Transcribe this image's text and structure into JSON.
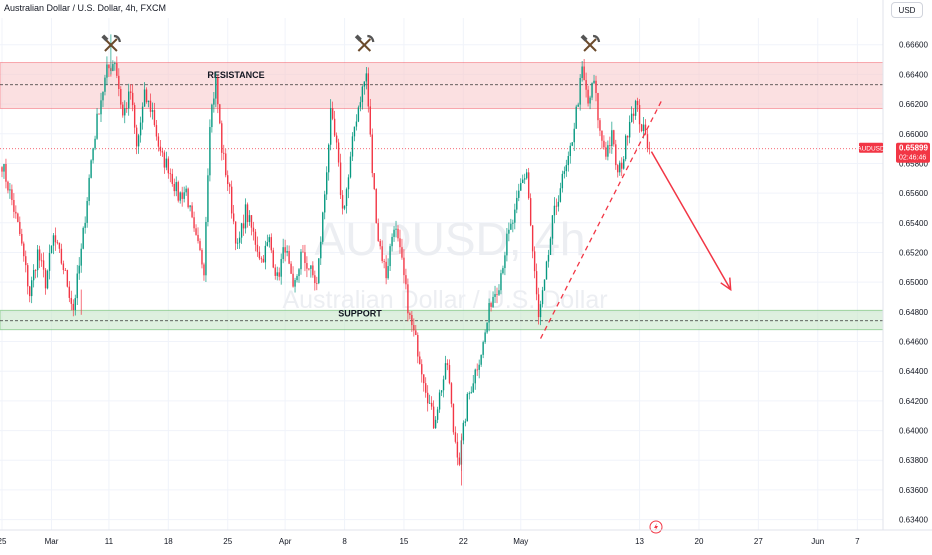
{
  "header": {
    "title": "Australian Dollar / U.S. Dollar, 4h, FXCM",
    "currency_button": "USD"
  },
  "watermark": {
    "main": "AUDUSD, 4h",
    "sub": "Australian Dollar / U.S. Dollar"
  },
  "price_tag": {
    "symbol": "AUDUSD",
    "price": "0.65899",
    "countdown": "02:46:46"
  },
  "colors": {
    "up": "#089981",
    "down": "#f23645",
    "resistance_zone": "#f7c6c9",
    "support_zone": "#c8e6c9",
    "arrow": "#f23645"
  },
  "chart_data": {
    "type": "candlestick",
    "ylim": [
      0.6333,
      0.6678
    ],
    "y_ticks": [
      0.634,
      0.636,
      0.638,
      0.64,
      0.642,
      0.644,
      0.646,
      0.648,
      0.65,
      0.652,
      0.654,
      0.656,
      0.658,
      0.66,
      0.662,
      0.664,
      0.666
    ],
    "y_tick_labels": [
      "0.63400",
      "0.63600",
      "0.63800",
      "0.64000",
      "0.64200",
      "0.64400",
      "0.64600",
      "0.64800",
      "0.65000",
      "0.65200",
      "0.65400",
      "0.65600",
      "0.65800",
      "0.66000",
      "0.66200",
      "0.66400",
      "0.66600"
    ],
    "x_labels": [
      {
        "label": "25",
        "bar": 0
      },
      {
        "label": "Mar",
        "bar": 25
      },
      {
        "label": "11",
        "bar": 54
      },
      {
        "label": "18",
        "bar": 84
      },
      {
        "label": "25",
        "bar": 114
      },
      {
        "label": "Apr",
        "bar": 143
      },
      {
        "label": "8",
        "bar": 173
      },
      {
        "label": "15",
        "bar": 203
      },
      {
        "label": "22",
        "bar": 233
      },
      {
        "label": "May",
        "bar": 262
      },
      {
        "label": "13",
        "bar": 322
      },
      {
        "label": "20",
        "bar": 352
      },
      {
        "label": "27",
        "bar": 382
      },
      {
        "label": "Jun",
        "bar": 412
      },
      {
        "label": "7",
        "bar": 432
      }
    ],
    "resistance": {
      "label": "RESISTANCE",
      "from": 0.6617,
      "to": 0.6648,
      "line": 0.6633
    },
    "support": {
      "label": "SUPPORT",
      "from": 0.6468,
      "to": 0.6481,
      "line": 0.6474
    },
    "current_price": 0.65899,
    "swing_highs": [
      {
        "bar": 55,
        "price": 0.6667
      },
      {
        "bar": 183,
        "price": 0.6645
      },
      {
        "bar": 297,
        "price": 0.6646
      }
    ],
    "trendline": {
      "from_bar": 272,
      "from_price": 0.6462,
      "to_bar": 333,
      "to_price": 0.6622
    },
    "forecast_arrow": {
      "from_bar": 328,
      "from_price": 0.6588,
      "to_bar": 368,
      "to_price": 0.6495
    },
    "anchors": [
      [
        0,
        0.658
      ],
      [
        5,
        0.6555
      ],
      [
        9,
        0.6532
      ],
      [
        14,
        0.6492
      ],
      [
        18,
        0.652
      ],
      [
        22,
        0.65
      ],
      [
        26,
        0.653
      ],
      [
        31,
        0.651
      ],
      [
        36,
        0.6482
      ],
      [
        40,
        0.652
      ],
      [
        45,
        0.6582
      ],
      [
        49,
        0.6618
      ],
      [
        53,
        0.6642
      ],
      [
        57,
        0.665
      ],
      [
        61,
        0.6612
      ],
      [
        65,
        0.6628
      ],
      [
        68,
        0.659
      ],
      [
        72,
        0.6625
      ],
      [
        76,
        0.6615
      ],
      [
        80,
        0.6585
      ],
      [
        84,
        0.6578
      ],
      [
        89,
        0.6558
      ],
      [
        93,
        0.6562
      ],
      [
        97,
        0.6532
      ],
      [
        102,
        0.651
      ],
      [
        105,
        0.661
      ],
      [
        108,
        0.6635
      ],
      [
        111,
        0.659
      ],
      [
        115,
        0.656
      ],
      [
        119,
        0.6522
      ],
      [
        123,
        0.6548
      ],
      [
        127,
        0.6532
      ],
      [
        131,
        0.6515
      ],
      [
        135,
        0.6528
      ],
      [
        139,
        0.6502
      ],
      [
        143,
        0.6525
      ],
      [
        147,
        0.6492
      ],
      [
        151,
        0.6518
      ],
      [
        155,
        0.651
      ],
      [
        159,
        0.6498
      ],
      [
        163,
        0.656
      ],
      [
        166,
        0.6612
      ],
      [
        169,
        0.659
      ],
      [
        172,
        0.6548
      ],
      [
        175,
        0.657
      ],
      [
        178,
        0.6605
      ],
      [
        181,
        0.6625
      ],
      [
        184,
        0.664
      ],
      [
        187,
        0.6575
      ],
      [
        190,
        0.653
      ],
      [
        194,
        0.6505
      ],
      [
        198,
        0.654
      ],
      [
        202,
        0.6512
      ],
      [
        206,
        0.6475
      ],
      [
        210,
        0.6455
      ],
      [
        214,
        0.643
      ],
      [
        218,
        0.6405
      ],
      [
        222,
        0.643
      ],
      [
        225,
        0.6445
      ],
      [
        228,
        0.64
      ],
      [
        231,
        0.638
      ],
      [
        235,
        0.642
      ],
      [
        239,
        0.644
      ],
      [
        243,
        0.6458
      ],
      [
        247,
        0.6488
      ],
      [
        251,
        0.65
      ],
      [
        255,
        0.6528
      ],
      [
        259,
        0.6545
      ],
      [
        262,
        0.6565
      ],
      [
        265,
        0.6575
      ],
      [
        268,
        0.652
      ],
      [
        271,
        0.6475
      ],
      [
        274,
        0.6498
      ],
      [
        278,
        0.654
      ],
      [
        282,
        0.6565
      ],
      [
        286,
        0.658
      ],
      [
        290,
        0.6615
      ],
      [
        293,
        0.6642
      ],
      [
        296,
        0.662
      ],
      [
        299,
        0.6635
      ],
      [
        302,
        0.66
      ],
      [
        305,
        0.6588
      ],
      [
        308,
        0.6598
      ],
      [
        311,
        0.6572
      ],
      [
        314,
        0.6585
      ],
      [
        317,
        0.6612
      ],
      [
        320,
        0.662
      ],
      [
        323,
        0.6605
      ],
      [
        327,
        0.659
      ]
    ]
  }
}
